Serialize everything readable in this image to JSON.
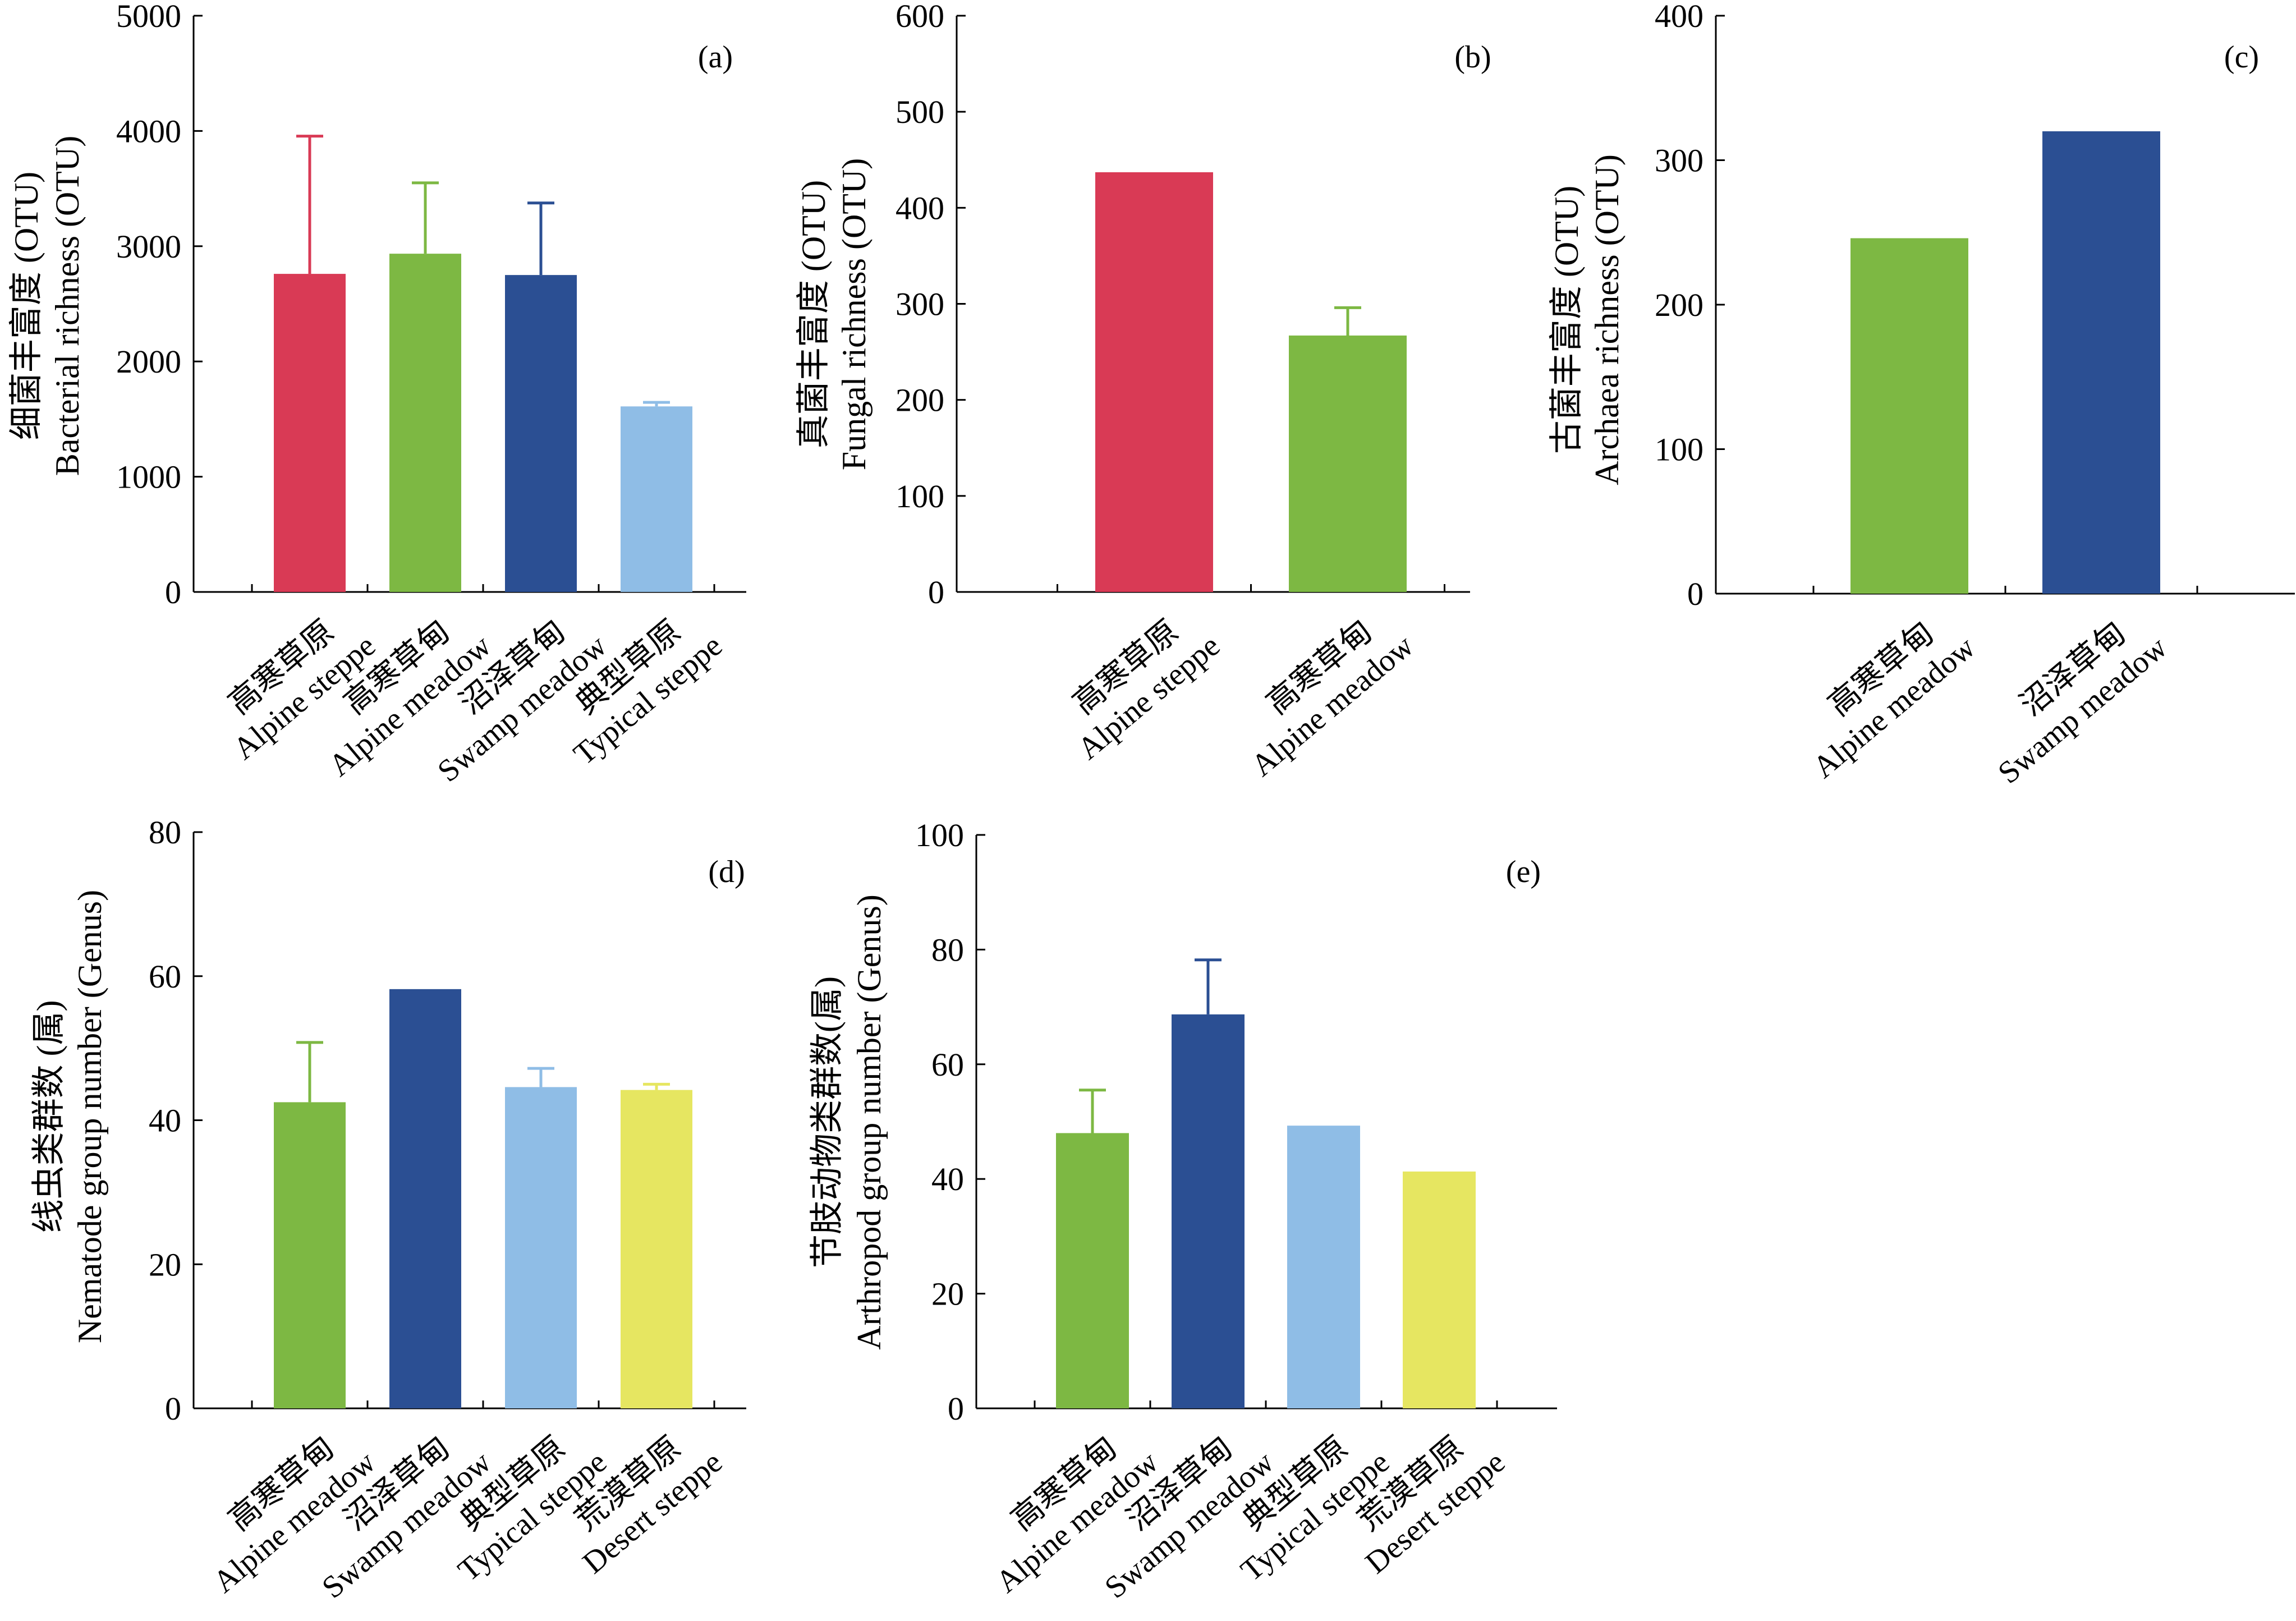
{
  "chart_data": [
    {
      "panel": "(a)",
      "type": "bar",
      "ylabel_cn": "细菌丰富度 (OTU)",
      "ylabel_en": "Bacterial richness (OTU)",
      "ylim": [
        0,
        5000
      ],
      "yticks": [
        0,
        1000,
        2000,
        3000,
        4000,
        5000
      ],
      "categories": [
        {
          "cn": "高寒草原",
          "en": "Alpine steppe"
        },
        {
          "cn": "高寒草甸",
          "en": "Alpine meadow"
        },
        {
          "cn": "沼泽草甸",
          "en": "Swamp meadow"
        },
        {
          "cn": "典型草原",
          "en": "Typical steppe"
        }
      ],
      "values": [
        2760,
        2935,
        2750,
        1610
      ],
      "errors": [
        1195,
        615,
        625,
        35
      ],
      "colors": [
        "#d93a55",
        "#7db843",
        "#2b4f93",
        "#8fbde6"
      ]
    },
    {
      "panel": "(b)",
      "type": "bar",
      "ylabel_cn": "真菌丰富度 (OTU)",
      "ylabel_en": "Fungal richness (OTU)",
      "ylim": [
        0,
        600
      ],
      "yticks": [
        0,
        100,
        200,
        300,
        400,
        500,
        600
      ],
      "categories": [
        {
          "cn": "高寒草原",
          "en": "Alpine  steppe"
        },
        {
          "cn": "高寒草甸",
          "en": "Alpine meadow"
        }
      ],
      "values": [
        437,
        267
      ],
      "errors": [
        0,
        29
      ],
      "colors": [
        "#d93a55",
        "#7db843"
      ]
    },
    {
      "panel": "(c)",
      "type": "bar",
      "ylabel_cn": "古菌丰富度 (OTU)",
      "ylabel_en": "Archaea richness (OTU)",
      "ylim": [
        0,
        400
      ],
      "yticks": [
        0,
        100,
        200,
        300,
        400
      ],
      "categories": [
        {
          "cn": "高寒草甸",
          "en": "Alpine meadow"
        },
        {
          "cn": "沼泽草甸",
          "en": "Swamp meadow"
        }
      ],
      "values": [
        246,
        320
      ],
      "errors": [
        0,
        0
      ],
      "colors": [
        "#7db843",
        "#2b4f93"
      ]
    },
    {
      "panel": "(d)",
      "type": "bar",
      "ylabel_cn": "线虫类群数 (属)",
      "ylabel_en": "Nematode group number (Genus)",
      "ylim": [
        0,
        80
      ],
      "yticks": [
        0,
        20,
        40,
        60,
        80
      ],
      "categories": [
        {
          "cn": "高寒草甸",
          "en": "Alpine meadow"
        },
        {
          "cn": "沼泽草甸",
          "en": "Swamp meadow"
        },
        {
          "cn": "典型草原",
          "en": "Typical steppe"
        },
        {
          "cn": "荒漠草原",
          "en": "Desert steppe"
        }
      ],
      "values": [
        42.5,
        58.2,
        44.6,
        44.2
      ],
      "errors": [
        8.3,
        0,
        2.6,
        0.8
      ],
      "colors": [
        "#7db843",
        "#2b4f93",
        "#8fbde6",
        "#e6e661"
      ]
    },
    {
      "panel": "(e)",
      "type": "bar",
      "ylabel_cn": "节肢动物类群数(属)",
      "ylabel_en": "Arthropod group number (Genus)",
      "ylim": [
        0,
        100
      ],
      "yticks": [
        0,
        20,
        40,
        60,
        80,
        100
      ],
      "categories": [
        {
          "cn": "高寒草甸",
          "en": "Alpine meadow"
        },
        {
          "cn": "沼泽草甸",
          "en": "Swamp meadow"
        },
        {
          "cn": "典型草原",
          "en": "Typical steppe"
        },
        {
          "cn": "荒漠草原",
          "en": "Desert steppe"
        }
      ],
      "values": [
        48,
        68.7,
        49.3,
        41.3
      ],
      "errors": [
        7.5,
        9.5,
        0,
        0
      ],
      "colors": [
        "#7db843",
        "#2b4f93",
        "#8fbde6",
        "#e6e661"
      ]
    }
  ]
}
